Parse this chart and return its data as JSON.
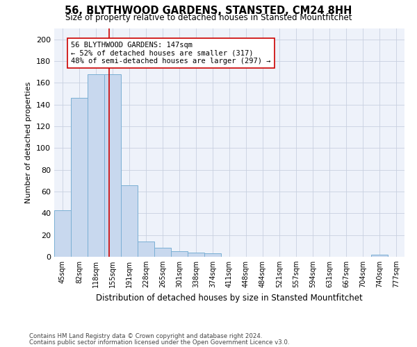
{
  "title": "56, BLYTHWOOD GARDENS, STANSTED, CM24 8HH",
  "subtitle": "Size of property relative to detached houses in Stansted Mountfitchet",
  "xlabel": "Distribution of detached houses by size in Stansted Mountfitchet",
  "ylabel": "Number of detached properties",
  "footnote1": "Contains HM Land Registry data © Crown copyright and database right 2024.",
  "footnote2": "Contains public sector information licensed under the Open Government Licence v3.0.",
  "bar_labels": [
    "45sqm",
    "82sqm",
    "118sqm",
    "155sqm",
    "191sqm",
    "228sqm",
    "265sqm",
    "301sqm",
    "338sqm",
    "374sqm",
    "411sqm",
    "448sqm",
    "484sqm",
    "521sqm",
    "557sqm",
    "594sqm",
    "631sqm",
    "667sqm",
    "704sqm",
    "740sqm",
    "777sqm"
  ],
  "bar_values": [
    43,
    146,
    168,
    168,
    66,
    14,
    8,
    5,
    4,
    3,
    0,
    0,
    0,
    0,
    0,
    0,
    0,
    0,
    0,
    2,
    0
  ],
  "bar_color": "#c8d8ee",
  "bar_edge_color": "#7aafd4",
  "annotation_text": "56 BLYTHWOOD GARDENS: 147sqm\n← 52% of detached houses are smaller (317)\n48% of semi-detached houses are larger (297) →",
  "annotation_box_color": "#ffffff",
  "annotation_box_edge_color": "#cc0000",
  "vline_color": "#cc0000",
  "vline_x": 2.78,
  "ylim": [
    0,
    210
  ],
  "yticks": [
    0,
    20,
    40,
    60,
    80,
    100,
    120,
    140,
    160,
    180,
    200
  ],
  "grid_color": "#c8d0e0",
  "background_color": "#ffffff",
  "plot_bg_color": "#eef2fa"
}
